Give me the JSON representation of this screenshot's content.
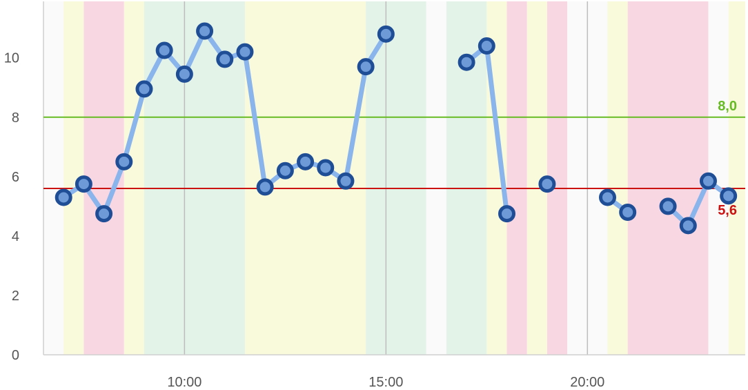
{
  "chart_data": {
    "type": "line",
    "title": "",
    "xlabel": "",
    "ylabel": "",
    "xlim": [
      "06:30",
      "23:55"
    ],
    "ylim": [
      0,
      11.9
    ],
    "x_ticks": [
      {
        "x": "10:00",
        "label": "10:00"
      },
      {
        "x": "15:00",
        "label": "15:00"
      },
      {
        "x": "20:00",
        "label": "20:00"
      }
    ],
    "y_ticks": [
      0,
      2,
      4,
      6,
      8,
      10
    ],
    "grid": {
      "x": true,
      "y": false
    },
    "reference_lines": [
      {
        "value": 8.0,
        "label": "8,0",
        "color": "#66BB22"
      },
      {
        "value": 5.6,
        "label": "5,6",
        "color": "#CC1111"
      }
    ],
    "background_bands": [
      {
        "start": "06:30",
        "end": "07:00",
        "color": "#FAFAFA"
      },
      {
        "start": "07:00",
        "end": "07:30",
        "color": "#F9F9DC"
      },
      {
        "start": "07:30",
        "end": "08:30",
        "color": "#F8D7E3"
      },
      {
        "start": "08:30",
        "end": "09:00",
        "color": "#F9F9DC"
      },
      {
        "start": "09:00",
        "end": "11:30",
        "color": "#E3F3E8"
      },
      {
        "start": "11:30",
        "end": "14:30",
        "color": "#F9F9DC"
      },
      {
        "start": "14:30",
        "end": "16:00",
        "color": "#E3F3E8"
      },
      {
        "start": "16:00",
        "end": "16:30",
        "color": "#FAFAFA"
      },
      {
        "start": "16:30",
        "end": "17:30",
        "color": "#E3F3E8"
      },
      {
        "start": "17:30",
        "end": "18:00",
        "color": "#F9F9DC"
      },
      {
        "start": "18:00",
        "end": "18:30",
        "color": "#F8D7E3"
      },
      {
        "start": "18:30",
        "end": "19:00",
        "color": "#F9F9DC"
      },
      {
        "start": "19:00",
        "end": "19:30",
        "color": "#F8D7E3"
      },
      {
        "start": "19:30",
        "end": "20:00",
        "color": "#FAFAFA"
      },
      {
        "start": "20:00",
        "end": "20:30",
        "color": "#FAFAFA"
      },
      {
        "start": "20:30",
        "end": "21:00",
        "color": "#F9F9DC"
      },
      {
        "start": "21:00",
        "end": "23:00",
        "color": "#F8D7E3"
      },
      {
        "start": "23:00",
        "end": "23:30",
        "color": "#FAFAFA"
      },
      {
        "start": "23:30",
        "end": "23:55",
        "color": "#F9F9DC"
      }
    ],
    "series": [
      {
        "color": "#8AB4EC",
        "marker_color": "#1F4E96",
        "segments": [
          [
            {
              "x": "07:00",
              "y": 5.3
            },
            {
              "x": "07:30",
              "y": 5.75
            },
            {
              "x": "08:00",
              "y": 4.75
            },
            {
              "x": "08:30",
              "y": 6.5
            },
            {
              "x": "09:00",
              "y": 8.95
            },
            {
              "x": "09:30",
              "y": 10.25
            },
            {
              "x": "10:00",
              "y": 9.45
            },
            {
              "x": "10:30",
              "y": 10.9
            },
            {
              "x": "11:00",
              "y": 9.95
            },
            {
              "x": "11:30",
              "y": 10.2
            },
            {
              "x": "12:00",
              "y": 5.65
            },
            {
              "x": "12:30",
              "y": 6.2
            },
            {
              "x": "13:00",
              "y": 6.5
            },
            {
              "x": "13:30",
              "y": 6.3
            },
            {
              "x": "14:00",
              "y": 5.85
            },
            {
              "x": "14:30",
              "y": 9.7
            },
            {
              "x": "15:00",
              "y": 10.8
            }
          ],
          [
            {
              "x": "17:00",
              "y": 9.85
            },
            {
              "x": "17:30",
              "y": 10.4
            },
            {
              "x": "18:00",
              "y": 4.75
            }
          ],
          [
            {
              "x": "19:00",
              "y": 5.75
            }
          ],
          [
            {
              "x": "20:30",
              "y": 5.3
            },
            {
              "x": "21:00",
              "y": 4.8
            }
          ],
          [
            {
              "x": "22:00",
              "y": 5.0
            },
            {
              "x": "22:30",
              "y": 4.35
            },
            {
              "x": "23:00",
              "y": 5.85
            },
            {
              "x": "23:30",
              "y": 5.35
            }
          ]
        ]
      }
    ]
  }
}
